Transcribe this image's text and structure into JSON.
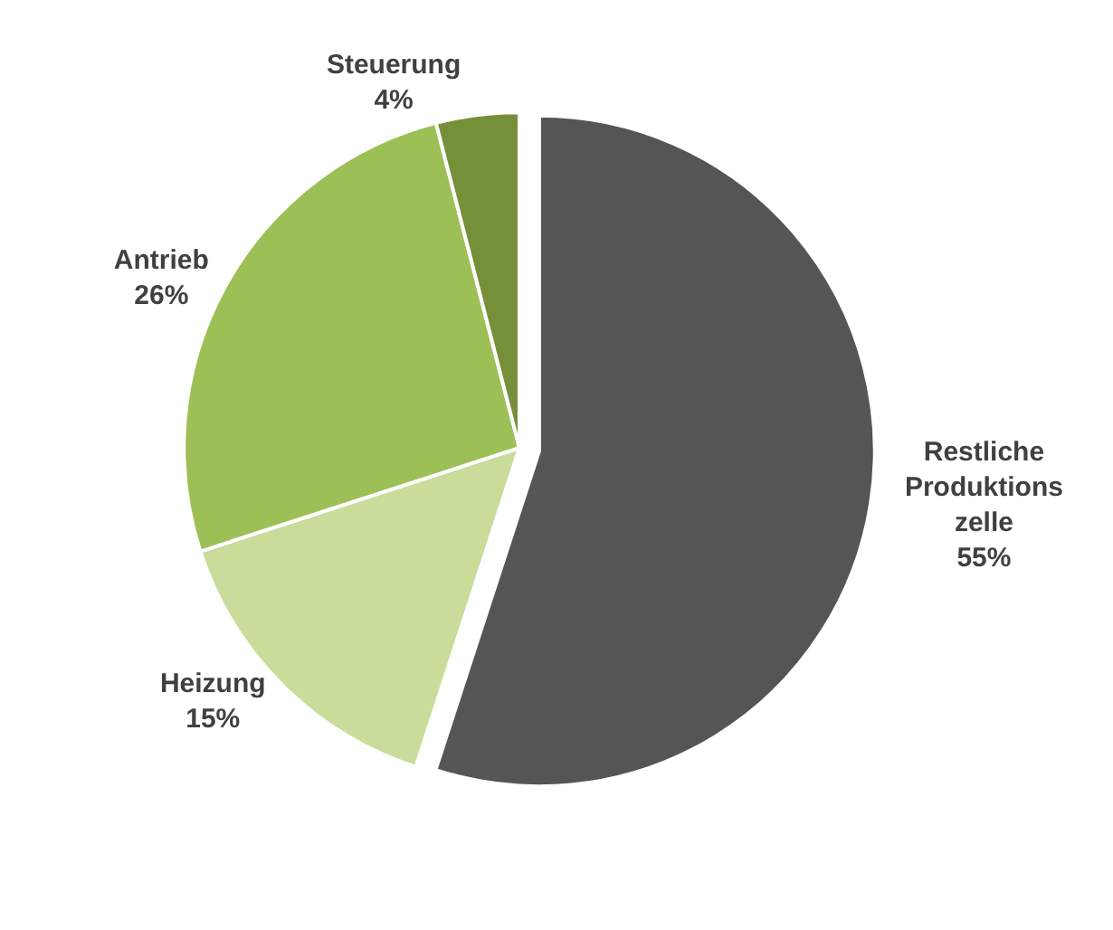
{
  "chart_data": {
    "type": "pie",
    "categories": [
      "Restliche\nProduktions\nzelle",
      "Heizung",
      "Antrieb",
      "Steuerung"
    ],
    "values": [
      55,
      15,
      26,
      4
    ],
    "value_labels": [
      "55%",
      "15%",
      "26%",
      "4%"
    ],
    "colors": [
      "#555555",
      "#c9dc9a",
      "#9dc056",
      "#76903a"
    ],
    "legend": false
  }
}
